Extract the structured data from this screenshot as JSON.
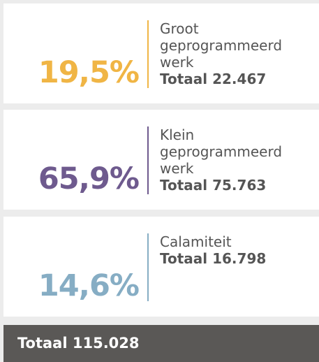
{
  "cards": [
    {
      "percent": "19,5%",
      "label": "Groot geprogrammeerd werk",
      "total": "Totaal 22.467",
      "color": "#f0b545"
    },
    {
      "percent": "65,9%",
      "label": "Klein geprogrammeerd werk",
      "total": "Totaal 75.763",
      "color": "#6e5a8e"
    },
    {
      "percent": "14,6%",
      "label": "Calamiteit",
      "total": "Totaal 16.798",
      "color": "#86adc4"
    }
  ],
  "footer": {
    "total": "Totaal 115.028"
  }
}
